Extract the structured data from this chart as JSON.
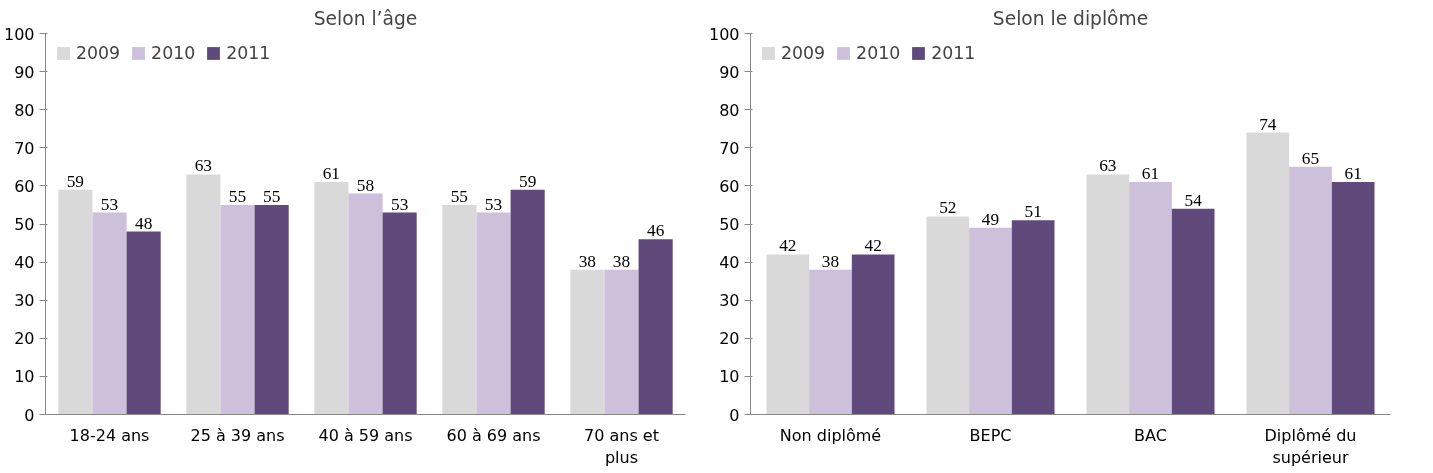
{
  "chart_data": [
    {
      "type": "bar",
      "title": "Selon l’âge",
      "categories": [
        "18-24 ans",
        "25 à 39 ans",
        "40 à 59 ans",
        "60 à 69 ans",
        "70 ans et plus"
      ],
      "series": [
        {
          "name": "2009",
          "color": "#d9d9d9",
          "values": [
            59,
            63,
            61,
            55,
            38
          ]
        },
        {
          "name": "2010",
          "color": "#ccc0da",
          "values": [
            53,
            55,
            58,
            53,
            38
          ]
        },
        {
          "name": "2011",
          "color": "#604a7b",
          "values": [
            48,
            55,
            53,
            59,
            46
          ]
        }
      ],
      "ylim": [
        0,
        100
      ],
      "yticks": [
        0,
        10,
        20,
        30,
        40,
        50,
        60,
        70,
        80,
        90,
        100
      ],
      "grid": false,
      "legend": "top left",
      "data_labels": true
    },
    {
      "type": "bar",
      "title": "Selon le diplôme",
      "categories": [
        "Non diplômé",
        "BEPC",
        "BAC",
        "Diplômé du supérieur"
      ],
      "series": [
        {
          "name": "2009",
          "color": "#d9d9d9",
          "values": [
            42,
            52,
            63,
            74
          ]
        },
        {
          "name": "2010",
          "color": "#ccc0da",
          "values": [
            38,
            49,
            61,
            65
          ]
        },
        {
          "name": "2011",
          "color": "#604a7b",
          "values": [
            42,
            51,
            54,
            61
          ]
        }
      ],
      "ylim": [
        0,
        100
      ],
      "yticks": [
        0,
        10,
        20,
        30,
        40,
        50,
        60,
        70,
        80,
        90,
        100
      ],
      "grid": false,
      "legend": "top left",
      "data_labels": true
    }
  ]
}
